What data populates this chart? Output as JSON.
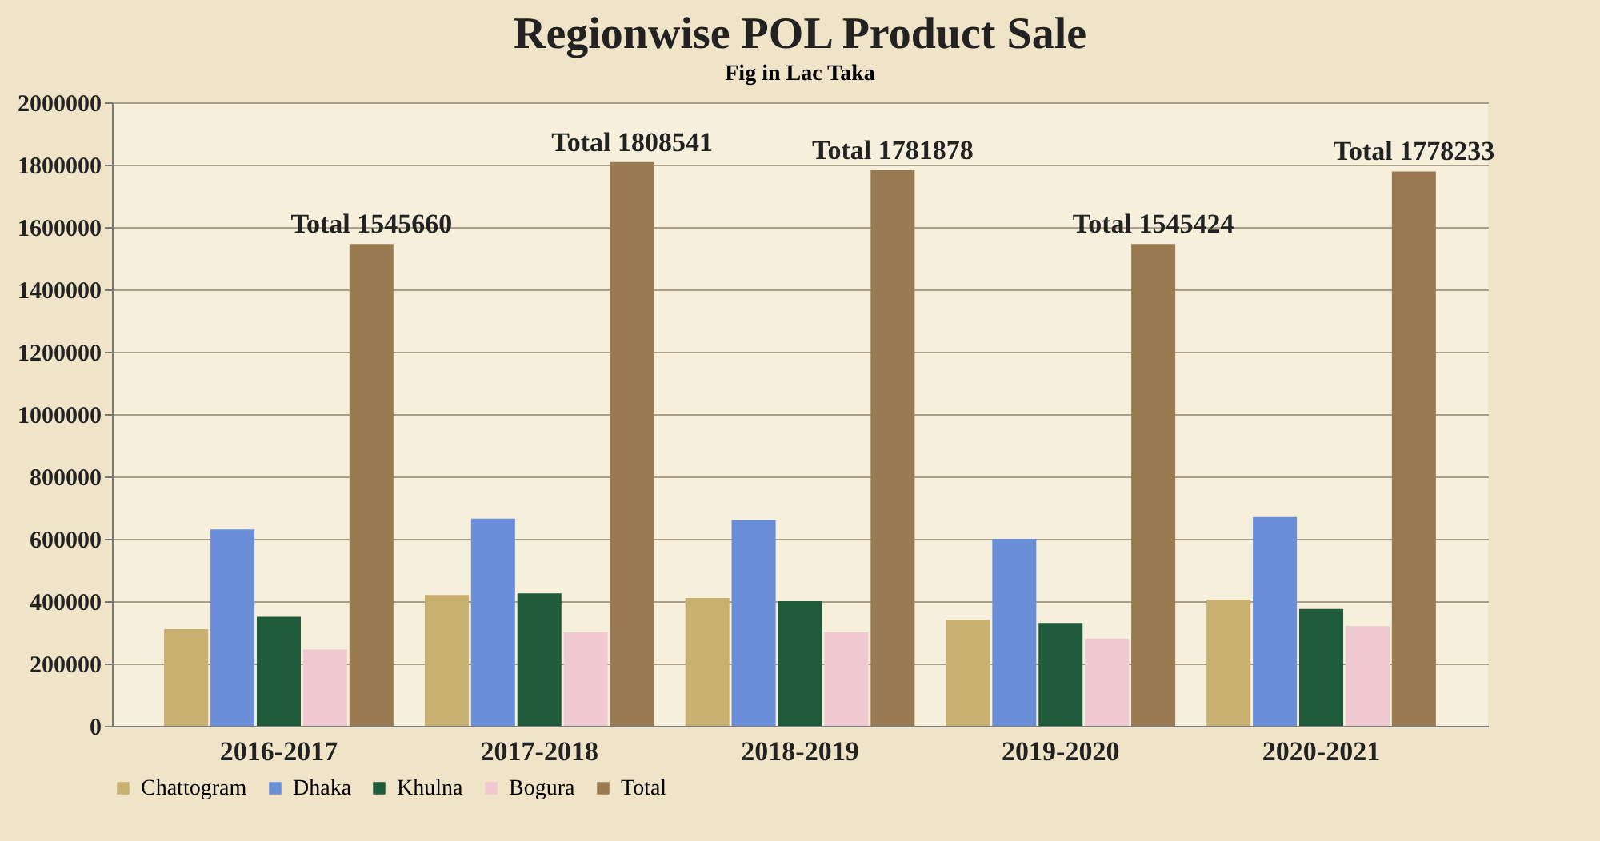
{
  "chart_data": {
    "type": "bar",
    "title": "Regionwise POL Product Sale",
    "categories": [
      "2016-2017",
      "2017-2018",
      "2018-2019",
      "2019-2020",
      "2020-2021"
    ],
    "series": [
      {
        "name": "Chattogram",
        "color": "#c8b070",
        "values": [
          310000,
          420000,
          410000,
          340000,
          405000
        ]
      },
      {
        "name": "Dhaka",
        "color": "#6a8fd8",
        "values": [
          630000,
          665000,
          660000,
          600000,
          670000
        ]
      },
      {
        "name": "Khulna",
        "color": "#1f5a3a",
        "values": [
          350000,
          425000,
          400000,
          330000,
          375000
        ]
      },
      {
        "name": "Bogura",
        "color": "#f0c8d0",
        "values": [
          245000,
          300000,
          300000,
          280000,
          320000
        ]
      },
      {
        "name": "Total",
        "color": "#9a7a50",
        "values": [
          1545660,
          1808541,
          1781878,
          1545424,
          1778233
        ]
      }
    ],
    "ylim": [
      0,
      2000000
    ],
    "yticks": [
      0,
      200000,
      400000,
      600000,
      800000,
      1000000,
      1200000,
      1400000,
      1600000,
      1800000,
      2000000
    ],
    "grid": "y",
    "legend": "bottom",
    "annotations": [
      "Total 1545660",
      "Total 1808541",
      "Total 1781878",
      "Total 1545424",
      "Total 1778233",
      "Fig in Lac Taka"
    ]
  }
}
